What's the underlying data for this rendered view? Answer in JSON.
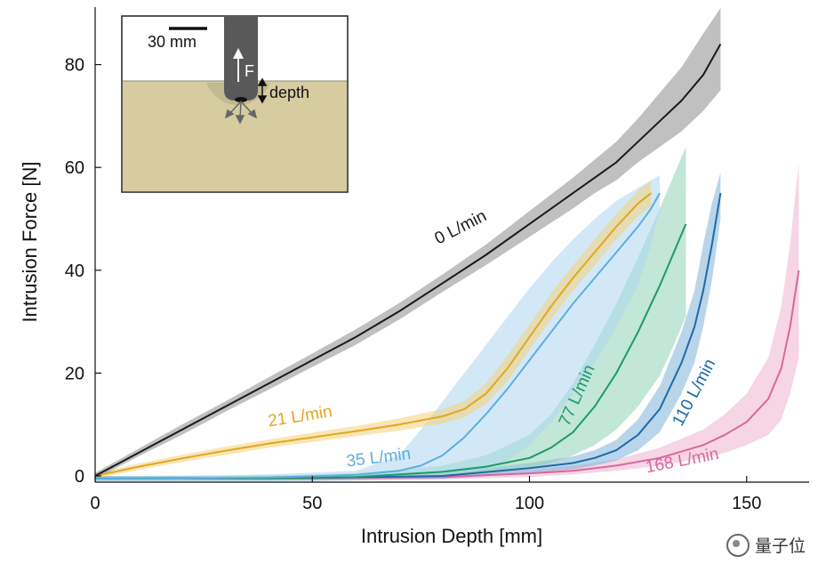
{
  "chart_data": {
    "type": "line",
    "xlabel": "Intrusion Depth [mm]",
    "ylabel": "Intrusion Force [N]",
    "xlim": [
      0,
      165
    ],
    "ylim": [
      -1,
      90
    ],
    "xticks": [
      0,
      50,
      100,
      150
    ],
    "yticks": [
      0,
      20,
      40,
      60,
      80
    ],
    "grid": false,
    "series": [
      {
        "name": "0 L/min",
        "color": "#1a1a1a",
        "band_color": "#8c8c8c",
        "x": [
          0,
          10,
          20,
          30,
          40,
          50,
          60,
          70,
          80,
          90,
          100,
          110,
          115,
          120,
          125,
          130,
          135,
          140,
          144
        ],
        "y": [
          0,
          4.5,
          9,
          13.5,
          18,
          22.5,
          27,
          32,
          37.5,
          43,
          49,
          55,
          58,
          61,
          65,
          69,
          73,
          78,
          84
        ],
        "band_upper": [
          0.6,
          5.3,
          10,
          14.5,
          19.2,
          23.8,
          28.5,
          33.6,
          39.2,
          45,
          51.5,
          58,
          61.5,
          65,
          69.5,
          74.5,
          79.5,
          86,
          91
        ],
        "band_lower": [
          -0.6,
          3.8,
          8,
          12.5,
          16.8,
          21.2,
          25.5,
          30.4,
          35.8,
          41,
          46.5,
          52,
          55,
          57.5,
          61,
          64,
          67,
          71,
          75
        ]
      },
      {
        "name": "21 L/min",
        "color": "#e5a61c",
        "band_color": "#f3d27a",
        "x": [
          0,
          10,
          20,
          30,
          40,
          50,
          60,
          70,
          80,
          85,
          90,
          95,
          100,
          105,
          110,
          115,
          120,
          125,
          128
        ],
        "y": [
          0,
          1.8,
          3.4,
          4.9,
          6.3,
          7.5,
          8.7,
          10,
          11.6,
          13,
          16,
          21,
          27,
          33,
          38.5,
          43.5,
          48.5,
          53,
          55
        ],
        "band_upper": [
          0.5,
          2.4,
          4.1,
          5.7,
          7.1,
          8.4,
          9.7,
          11.2,
          13,
          14.6,
          18,
          23.5,
          29.5,
          35.5,
          41,
          46,
          51,
          55.5,
          57.5
        ],
        "band_lower": [
          -0.5,
          1.2,
          2.7,
          4.1,
          5.5,
          6.6,
          7.7,
          8.8,
          10.2,
          11.4,
          14,
          18.5,
          24.5,
          30.5,
          36,
          41,
          46,
          50.5,
          52.5
        ]
      },
      {
        "name": "35 L/min",
        "color": "#5aaee0",
        "band_color": "#aed6f1",
        "x": [
          0,
          20,
          40,
          60,
          70,
          75,
          80,
          85,
          90,
          95,
          100,
          105,
          110,
          115,
          120,
          125,
          128,
          130
        ],
        "y": [
          -0.5,
          -0.5,
          -0.3,
          0.2,
          1,
          2,
          4,
          7.5,
          12,
          17,
          22.5,
          28,
          33.5,
          38.5,
          43.5,
          48.5,
          52,
          55
        ],
        "band_upper": [
          0,
          0,
          0.3,
          1,
          4,
          9,
          14.5,
          20,
          25.5,
          31,
          36.5,
          41.5,
          46,
          50,
          53.5,
          56,
          57.5,
          58.5
        ],
        "band_lower": [
          -1,
          -1,
          -1,
          -0.8,
          -0.5,
          -0.2,
          0.3,
          0.8,
          1.5,
          3,
          6,
          10.5,
          16,
          22,
          29,
          37,
          45,
          52
        ]
      },
      {
        "name": "77 L/min",
        "color": "#1c9a6e",
        "band_color": "#8fd1b6",
        "x": [
          0,
          40,
          60,
          80,
          90,
          100,
          105,
          110,
          115,
          120,
          125,
          130,
          133,
          136
        ],
        "y": [
          -0.5,
          -0.5,
          -0.2,
          0.8,
          1.8,
          3.5,
          5.5,
          8.5,
          13.5,
          20,
          28,
          37,
          43,
          49
        ],
        "band_upper": [
          0,
          0,
          0.5,
          2,
          4,
          8,
          12,
          18,
          25.5,
          33.5,
          42.5,
          52,
          58,
          64
        ],
        "band_lower": [
          -1,
          -1,
          -0.8,
          -0.2,
          0.5,
          1.5,
          2.5,
          4,
          6,
          9,
          13.5,
          19.5,
          25,
          31
        ]
      },
      {
        "name": "110 L/min",
        "color": "#1f6aa8",
        "band_color": "#7fb2d9",
        "x": [
          0,
          50,
          80,
          100,
          110,
          115,
          120,
          125,
          130,
          135,
          138,
          140,
          142,
          144
        ],
        "y": [
          -0.5,
          -0.4,
          0,
          1.5,
          2.5,
          3.5,
          5,
          8,
          13,
          22,
          29,
          36,
          45,
          55
        ],
        "band_upper": [
          0,
          0.1,
          0.6,
          2.5,
          3.8,
          5,
          7,
          11,
          17.5,
          28,
          36,
          45,
          53,
          59
        ],
        "band_lower": [
          -1,
          -0.9,
          -0.6,
          0.5,
          1.3,
          2,
          3,
          5,
          8.5,
          16,
          22,
          29,
          38,
          50
        ]
      },
      {
        "name": "168 L/min",
        "color": "#d8689c",
        "band_color": "#eeb3cf",
        "x": [
          0,
          50,
          80,
          100,
          110,
          120,
          130,
          140,
          145,
          150,
          155,
          158,
          160,
          162
        ],
        "y": [
          -0.5,
          -0.5,
          -0.2,
          0.5,
          1,
          2,
          3.5,
          6,
          8,
          10.5,
          15,
          21,
          29,
          40
        ],
        "band_upper": [
          0,
          0,
          0.3,
          1.2,
          2,
          3.2,
          5.5,
          9,
          12,
          16,
          23,
          33,
          45,
          61
        ],
        "band_lower": [
          -1,
          -1,
          -0.7,
          -0.2,
          0.3,
          1,
          2,
          3.5,
          4.5,
          6,
          8,
          11,
          16,
          23
        ]
      }
    ],
    "series_labels": [
      {
        "text": "0 L/min",
        "color": "#1a1a1a",
        "x": 79,
        "y": 45,
        "angle": -27
      },
      {
        "text": "21 L/min",
        "color": "#e5a61c",
        "x": 40,
        "y": 9.6,
        "angle": -9
      },
      {
        "text": "35 L/min",
        "color": "#5aaee0",
        "x": 58,
        "y": 1.8,
        "angle": -7
      },
      {
        "text": "77 L/min",
        "color": "#1c9a6e",
        "x": 109,
        "y": 9.5,
        "angle": -66
      },
      {
        "text": "110 L/min",
        "color": "#1f6aa8",
        "x": 135,
        "y": 9.5,
        "angle": -62
      },
      {
        "text": "168 L/min",
        "color": "#d8689c",
        "x": 127,
        "y": 0.6,
        "angle": -11
      }
    ],
    "inset": {
      "scale_label": "30 mm",
      "force_label": "F",
      "depth_label": "depth",
      "sand_color": "#d6cca0",
      "intruder_color": "#595959"
    }
  },
  "watermark": {
    "text": "量子位"
  }
}
